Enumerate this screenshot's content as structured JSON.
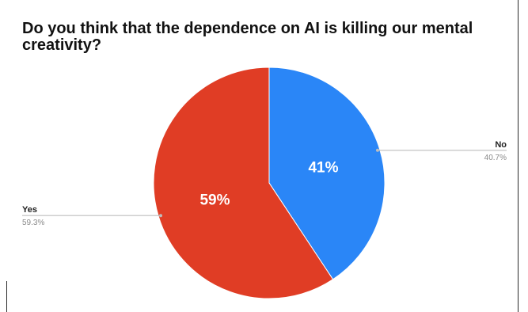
{
  "chart_data": {
    "type": "pie",
    "title": "Do you think that the dependence on AI is killing our mental creativity?",
    "slices": [
      {
        "name": "No",
        "value": 40.7,
        "display": "41%",
        "detail": "40.7%",
        "color": "#2a86f7"
      },
      {
        "name": "Yes",
        "value": 59.3,
        "display": "59%",
        "detail": "59.3%",
        "color": "#e03d25"
      }
    ],
    "legend": "callout-labels"
  }
}
